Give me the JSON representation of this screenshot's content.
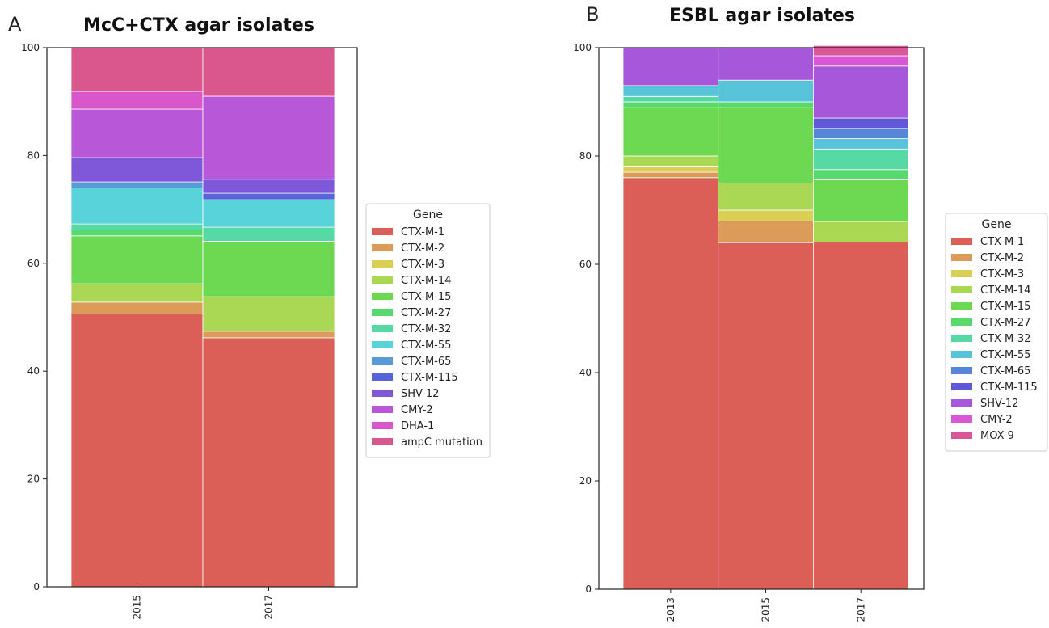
{
  "chart_data": [
    {
      "type": "bar",
      "stacked": true,
      "panel_label": "A",
      "title": "McC+CTX agar isolates",
      "categories": [
        "2015",
        "2017"
      ],
      "ylim": [
        0,
        100
      ],
      "yticks": [
        0,
        20,
        40,
        60,
        80,
        100
      ],
      "legend_title": "Gene",
      "legend_position": "right",
      "series": [
        {
          "name": "CTX-M-1",
          "color": "#db5f57",
          "values": [
            50.6,
            46.2
          ]
        },
        {
          "name": "CTX-M-2",
          "color": "#dc9b58",
          "values": [
            2.2,
            1.2
          ]
        },
        {
          "name": "CTX-M-3",
          "color": "#d9cf55",
          "values": [
            0,
            0
          ]
        },
        {
          "name": "CTX-M-14",
          "color": "#aad855",
          "values": [
            3.4,
            6.4
          ]
        },
        {
          "name": "CTX-M-15",
          "color": "#6dd952",
          "values": [
            8.9,
            10.3
          ]
        },
        {
          "name": "CTX-M-27",
          "color": "#57d96e",
          "values": [
            1.1,
            0
          ]
        },
        {
          "name": "CTX-M-32",
          "color": "#57d9a6",
          "values": [
            1.1,
            2.6
          ]
        },
        {
          "name": "CTX-M-55",
          "color": "#57d3d9",
          "values": [
            6.7,
            5.1
          ]
        },
        {
          "name": "CTX-M-65",
          "color": "#579cd9",
          "values": [
            1.1,
            0
          ]
        },
        {
          "name": "CTX-M-115",
          "color": "#5765d9",
          "values": [
            0,
            1.2
          ]
        },
        {
          "name": "SHV-12",
          "color": "#7f57d9",
          "values": [
            4.5,
            2.6
          ]
        },
        {
          "name": "CMY-2",
          "color": "#b957d9",
          "values": [
            9.0,
            15.4
          ]
        },
        {
          "name": "DHA-1",
          "color": "#d957c8",
          "values": [
            3.3,
            0
          ]
        },
        {
          "name": "ampC mutation",
          "color": "#d9578d",
          "values": [
            8.1,
            9.0
          ]
        }
      ]
    },
    {
      "type": "bar",
      "stacked": true,
      "panel_label": "B",
      "title": "ESBL agar isolates",
      "categories": [
        "2013",
        "2015",
        "2017"
      ],
      "ylim": [
        0,
        100
      ],
      "yticks": [
        0,
        20,
        40,
        60,
        80,
        100
      ],
      "legend_title": "Gene",
      "legend_position": "right",
      "series": [
        {
          "name": "CTX-M-1",
          "color": "#db5f57",
          "values": [
            76.0,
            64.0,
            64.1
          ]
        },
        {
          "name": "CTX-M-2",
          "color": "#dc9b58",
          "values": [
            1.0,
            4.0,
            0
          ]
        },
        {
          "name": "CTX-M-3",
          "color": "#d9cf55",
          "values": [
            1.0,
            2.0,
            0
          ]
        },
        {
          "name": "CTX-M-14",
          "color": "#aad855",
          "values": [
            2.0,
            5.0,
            3.8
          ]
        },
        {
          "name": "CTX-M-15",
          "color": "#6dd952",
          "values": [
            9.0,
            14.0,
            7.7
          ]
        },
        {
          "name": "CTX-M-27",
          "color": "#57d96e",
          "values": [
            1.0,
            1.0,
            1.9
          ]
        },
        {
          "name": "CTX-M-32",
          "color": "#57d9a6",
          "values": [
            1.0,
            0,
            3.8
          ]
        },
        {
          "name": "CTX-M-55",
          "color": "#57c4d9",
          "values": [
            2.0,
            4.0,
            1.9
          ]
        },
        {
          "name": "CTX-M-65",
          "color": "#5785d9",
          "values": [
            0,
            0,
            1.9
          ]
        },
        {
          "name": "CTX-M-115",
          "color": "#6157d9",
          "values": [
            0,
            0,
            1.9
          ]
        },
        {
          "name": "SHV-12",
          "color": "#a757d9",
          "values": [
            7.0,
            6.0,
            9.6
          ]
        },
        {
          "name": "CMY-2",
          "color": "#d957d4",
          "values": [
            0,
            0,
            1.9
          ]
        },
        {
          "name": "MOX-9",
          "color": "#d95797",
          "values": [
            0,
            0,
            1.9
          ]
        }
      ]
    }
  ]
}
